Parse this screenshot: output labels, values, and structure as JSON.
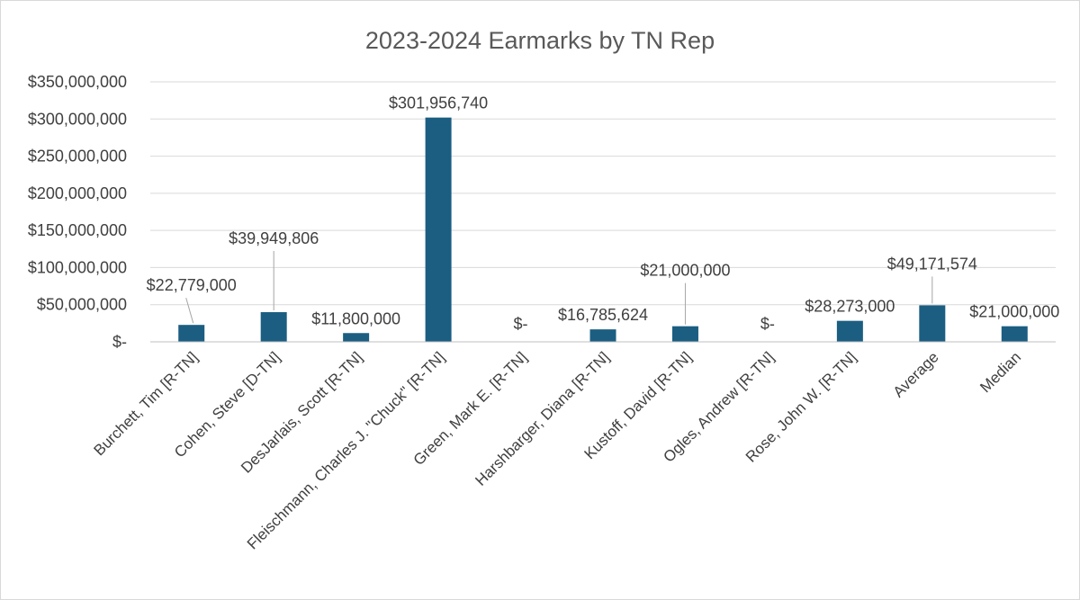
{
  "chart_data": {
    "type": "bar",
    "title": "2023-2024 Earmarks by TN Rep",
    "xlabel": "",
    "ylabel": "",
    "ylim": [
      0,
      350000000
    ],
    "ytick_values": [
      0,
      50000000,
      100000000,
      150000000,
      200000000,
      250000000,
      300000000,
      350000000
    ],
    "ytick_labels": [
      "$-",
      "$50,000,000",
      "$100,000,000",
      "$150,000,000",
      "$200,000,000",
      "$250,000,000",
      "$300,000,000",
      "$350,000,000"
    ],
    "grid": true,
    "legend": "none",
    "bar_color": "#1b5e82",
    "categories": [
      "Burchett, Tim [R-TN]",
      "Cohen, Steve [D-TN]",
      "DesJarlais, Scott [R-TN]",
      "Fleischmann, Charles J. \"Chuck\" [R-TN]",
      "Green, Mark E. [R-TN]",
      "Harshbarger, Diana [R-TN]",
      "Kustoff, David [R-TN]",
      "Ogles, Andrew [R-TN]",
      "Rose, John W. [R-TN]",
      "Average",
      "Median"
    ],
    "values": [
      22779000,
      39949806,
      11800000,
      301956740,
      0,
      16785624,
      21000000,
      0,
      28273000,
      49171574,
      21000000
    ],
    "data_labels": [
      "$22,779,000",
      "$39,949,806",
      "$11,800,000",
      "$301,956,740",
      "$-",
      "$16,785,624",
      "$21,000,000",
      "$-",
      "$28,273,000",
      "$49,171,574",
      "$21,000,000"
    ]
  }
}
